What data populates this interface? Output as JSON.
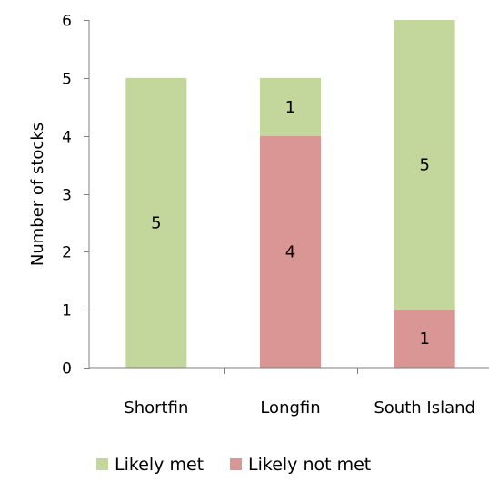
{
  "chart_data": {
    "type": "bar",
    "stacked": true,
    "categories": [
      "Shortfin",
      "Longfin",
      "South Island"
    ],
    "series": [
      {
        "name": "Likely met",
        "values": [
          5,
          1,
          5
        ],
        "color": "#c3d69b"
      },
      {
        "name": "Likely not met",
        "values": [
          0,
          4,
          1
        ],
        "color": "#d99694"
      }
    ],
    "data_labels": [
      {
        "category": "Shortfin",
        "series": "Likely met",
        "text": "5"
      },
      {
        "category": "Longfin",
        "series": "Likely met",
        "text": "1"
      },
      {
        "category": "Longfin",
        "series": "Likely not met",
        "text": "4"
      },
      {
        "category": "South Island",
        "series": "Likely met",
        "text": "5"
      },
      {
        "category": "South Island",
        "series": "Likely not met",
        "text": "1"
      }
    ],
    "ylabel": "Number of stocks",
    "xlabel": "",
    "ylim": [
      0,
      6
    ],
    "yticks": [
      0,
      1,
      2,
      3,
      4,
      5,
      6
    ],
    "grid": false,
    "legend_position": "bottom"
  }
}
